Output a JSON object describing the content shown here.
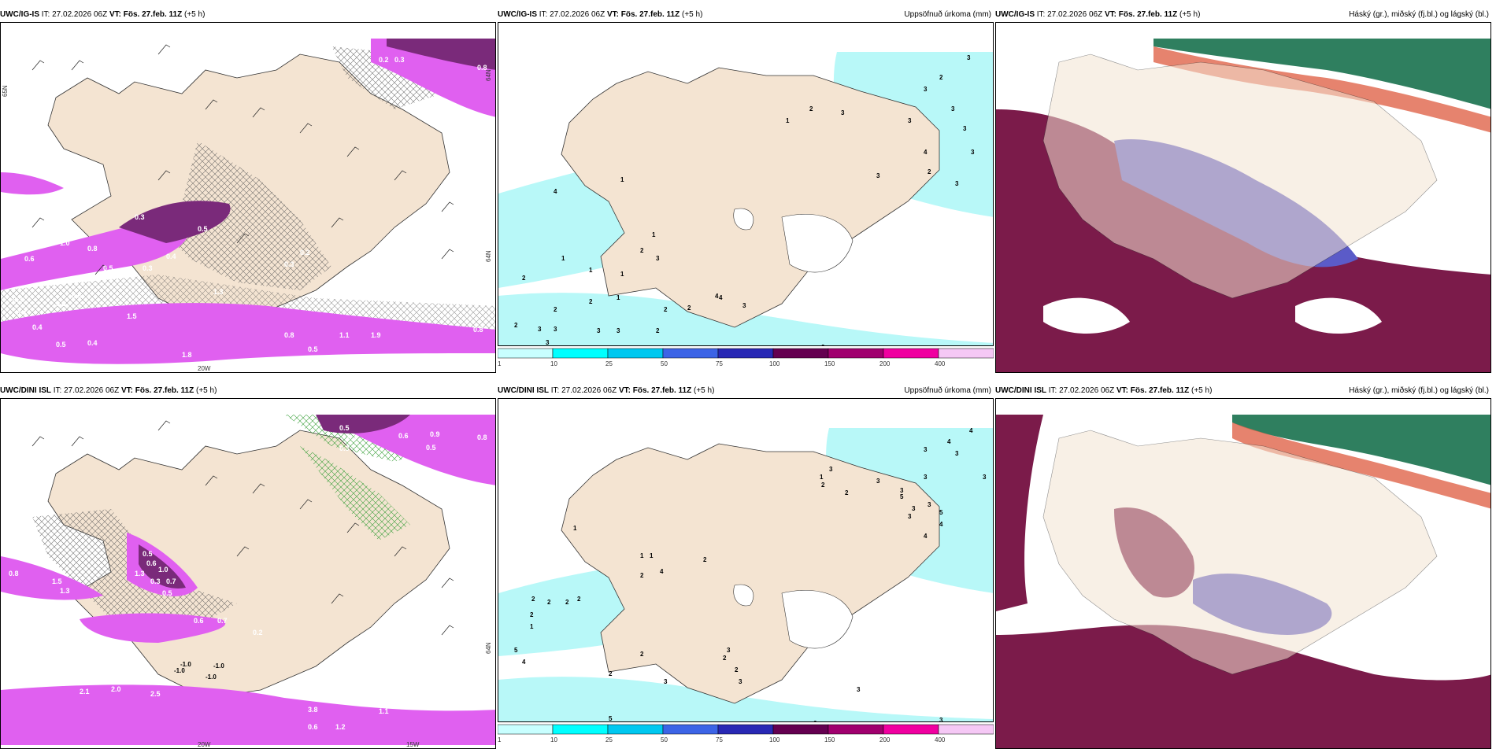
{
  "colors": {
    "land": "#f4e4d2",
    "sea": "#ffffff",
    "precip_light": "#b8f8f8",
    "magenta": "#e060f0",
    "purple_dark": "#7a2a7a",
    "cloud_low": "#7b1b4a",
    "cloud_mid": "#5b5bc8",
    "cloud_high": "#2f7f5f",
    "cloud_edge": "#e0644a"
  },
  "legend_colors": [
    "#c8ffff",
    "#00ffff",
    "#00c8f0",
    "#3c64e6",
    "#2828b4",
    "#640050",
    "#a0006e",
    "#f000a0",
    "#f5c8f5"
  ],
  "rows": [
    {
      "model": "UWC/IG-IS",
      "it_label": "IT: 27.02.2026 06Z",
      "vt_label": "VT: Fös. 27.feb. 11Z",
      "lead": "(+5 h)",
      "panel1_values": [
        "0.8",
        "0.2",
        "0.3",
        "0.5",
        "0.3",
        "0.5",
        "1.0",
        "0.6",
        "0.8",
        "0.3",
        "0.4",
        "0.5",
        "0.3",
        "0.4",
        "0.8",
        "1.3",
        "1.5",
        "0.2",
        "0.5",
        "0.6",
        "0.4",
        "1.8",
        "0.8",
        "0.5",
        "1.1",
        "1.9",
        "0.4",
        "0.3",
        "0.8",
        "0.4"
      ],
      "panel1_axis": [
        "65N",
        "64N",
        "26W",
        "20W"
      ],
      "panel2_values": [
        "3",
        "2",
        "3",
        "3",
        "3",
        "3",
        "3",
        "2",
        "1",
        "3",
        "2",
        "4",
        "3",
        "4",
        "3",
        "1",
        "1",
        "1",
        "4",
        "1",
        "1",
        "2",
        "3",
        "1",
        "2",
        "2",
        "2",
        "3",
        "3",
        "3",
        "3",
        "2",
        "2",
        "2",
        "2",
        "4",
        "3",
        "3",
        "2",
        "3",
        "2",
        "3"
      ]
    },
    {
      "model": "UWC/DINI ISL",
      "it_label": "IT: 27.02.2026 06Z",
      "vt_label": "VT: Fös. 27.feb. 11Z",
      "lead": "(+5 h)",
      "panel1_values": [
        "0.5",
        "0.4",
        "0.6",
        "0.9",
        "0.8",
        "0.3",
        "0.5",
        "0.5",
        "0.8",
        "0.4",
        "1.5",
        "1.3",
        "0.6",
        "1.0",
        "0.7",
        "1.3",
        "0.5",
        "0.6",
        "0.3",
        "0.7",
        "0.2",
        "1.0",
        "2.1",
        "2.0",
        "2.5",
        "3.8",
        "1.2",
        "1.1",
        "1.6",
        "0.6"
      ],
      "panel1_neg": [
        "-1.0",
        "-1.0",
        "-1.0",
        "-1.0"
      ],
      "panel1_axis": [
        "64N",
        "20W",
        "15W"
      ],
      "panel2_values": [
        "4",
        "3",
        "3",
        "4",
        "3",
        "3",
        "1",
        "2",
        "3",
        "3",
        "3",
        "3",
        "3",
        "2",
        "5",
        "5",
        "4",
        "3",
        "4",
        "1",
        "1",
        "1",
        "2",
        "2",
        "4",
        "2",
        "2",
        "2",
        "2",
        "2",
        "1",
        "2",
        "2",
        "5",
        "4",
        "3",
        "2",
        "2",
        "3",
        "3",
        "3",
        "5",
        "6",
        "3"
      ]
    }
  ],
  "titles": {
    "precip": "Uppsöfnuð úrkoma (mm)",
    "cloud": "Háský (gr.), miðský (fj.bl.) og lágský (bl.)"
  },
  "legend": {
    "labels": [
      "1",
      "10",
      "25",
      "50",
      "75",
      "100",
      "150",
      "200",
      "400"
    ]
  }
}
